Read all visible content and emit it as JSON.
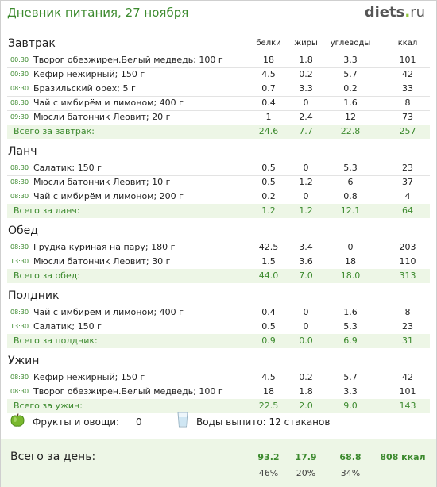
{
  "header": {
    "title": "Дневник питания, 27 ноября",
    "logo_main": "diets",
    "logo_dot": ".",
    "logo_tld": "ru"
  },
  "columns": [
    "белки",
    "жиры",
    "углеводы",
    "ккал"
  ],
  "meals": [
    {
      "title": "Завтрак",
      "items": [
        {
          "time": "00:30",
          "name": "Творог обезжирен.Белый медведь; 100 г",
          "protein": "18",
          "fat": "1.8",
          "carbs": "3.3",
          "kcal": "101"
        },
        {
          "time": "00:30",
          "name": "Кефир нежирный; 150 г",
          "protein": "4.5",
          "fat": "0.2",
          "carbs": "5.7",
          "kcal": "42"
        },
        {
          "time": "08:30",
          "name": "Бразильский орех; 5 г",
          "protein": "0.7",
          "fat": "3.3",
          "carbs": "0.2",
          "kcal": "33"
        },
        {
          "time": "08:30",
          "name": "Чай с имбирём и лимоном; 400 г",
          "protein": "0.4",
          "fat": "0",
          "carbs": "1.6",
          "kcal": "8"
        },
        {
          "time": "09:30",
          "name": "Мюсли батончик Леовит; 20 г",
          "protein": "1",
          "fat": "2.4",
          "carbs": "12",
          "kcal": "73"
        }
      ],
      "total": {
        "label": "Всего за завтрак:",
        "protein": "24.6",
        "fat": "7.7",
        "carbs": "22.8",
        "kcal": "257"
      }
    },
    {
      "title": "Ланч",
      "items": [
        {
          "time": "08:30",
          "name": "Салатик; 150 г",
          "protein": "0.5",
          "fat": "0",
          "carbs": "5.3",
          "kcal": "23"
        },
        {
          "time": "08:30",
          "name": "Мюсли батончик Леовит; 10 г",
          "protein": "0.5",
          "fat": "1.2",
          "carbs": "6",
          "kcal": "37"
        },
        {
          "time": "08:30",
          "name": "Чай с имбирём и лимоном; 200 г",
          "protein": "0.2",
          "fat": "0",
          "carbs": "0.8",
          "kcal": "4"
        }
      ],
      "total": {
        "label": "Всего за ланч:",
        "protein": "1.2",
        "fat": "1.2",
        "carbs": "12.1",
        "kcal": "64"
      }
    },
    {
      "title": "Обед",
      "items": [
        {
          "time": "08:30",
          "name": "Грудка куриная на пару; 180 г",
          "protein": "42.5",
          "fat": "3.4",
          "carbs": "0",
          "kcal": "203"
        },
        {
          "time": "13:30",
          "name": "Мюсли батончик Леовит; 30 г",
          "protein": "1.5",
          "fat": "3.6",
          "carbs": "18",
          "kcal": "110"
        }
      ],
      "total": {
        "label": "Всего за обед:",
        "protein": "44.0",
        "fat": "7.0",
        "carbs": "18.0",
        "kcal": "313"
      }
    },
    {
      "title": "Полдник",
      "items": [
        {
          "time": "08:30",
          "name": "Чай с имбирём и лимоном; 400 г",
          "protein": "0.4",
          "fat": "0",
          "carbs": "1.6",
          "kcal": "8"
        },
        {
          "time": "13:30",
          "name": "Салатик; 150 г",
          "protein": "0.5",
          "fat": "0",
          "carbs": "5.3",
          "kcal": "23"
        }
      ],
      "total": {
        "label": "Всего за полдник:",
        "protein": "0.9",
        "fat": "0.0",
        "carbs": "6.9",
        "kcal": "31"
      }
    },
    {
      "title": "Ужин",
      "items": [
        {
          "time": "08:30",
          "name": "Кефир нежирный; 150 г",
          "protein": "4.5",
          "fat": "0.2",
          "carbs": "5.7",
          "kcal": "42"
        },
        {
          "time": "08:30",
          "name": "Творог обезжирен.Белый медведь; 100 г",
          "protein": "18",
          "fat": "1.8",
          "carbs": "3.3",
          "kcal": "101"
        }
      ],
      "total": {
        "label": "Всего за ужин:",
        "protein": "22.5",
        "fat": "2.0",
        "carbs": "9.0",
        "kcal": "143"
      }
    }
  ],
  "extras": {
    "fruits_label": "Фрукты и овощи:",
    "fruits_value": "0",
    "water_label": "Воды выпито: 12 стаканов",
    "fruits_icon": "green-apple-icon",
    "water_icon": "water-glass-icon"
  },
  "day_total": {
    "label": "Всего за день:",
    "protein": "93.2",
    "fat": "17.9",
    "carbs": "68.8",
    "kcal": "808 ккал",
    "protein_pct": "46%",
    "fat_pct": "20%",
    "carbs_pct": "34%"
  },
  "colors": {
    "accent": "#3c8a2e",
    "total_bg": "#edf6e6",
    "logo_dot": "#8fc33b"
  }
}
